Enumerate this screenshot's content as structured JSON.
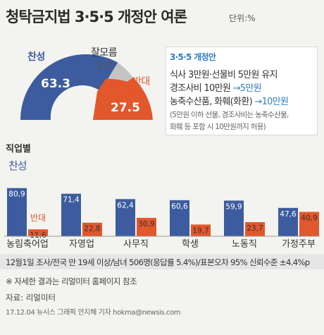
{
  "title": "청탁금지법 3·5·5 개정안 여론",
  "unit": "단위:%",
  "colors": {
    "approve": "#3d5c9f",
    "oppose": "#e2572b",
    "unknown": "#c4c4c4",
    "text": "#333333",
    "box_accent": "#2f7fc3"
  },
  "gauge": {
    "approve": {
      "label": "찬성",
      "value": "63.3"
    },
    "unknown": {
      "label": "잘모름",
      "value": "9.2"
    },
    "oppose": {
      "label": "반대",
      "value": "27.5"
    }
  },
  "box": {
    "title": "3·5·5 개정안",
    "line1": "식사 3만원·선물비 5만원 유지",
    "line2a": "경조사비 10만원 ",
    "line2b": "→5만원",
    "line3a": "농축수산품, 화훼(화환) ",
    "line3b": "→10만원",
    "line4": "(5만원 이하 선물, 경조사비는 농축수산물,",
    "line5": "화훼 등 포함 시 10만원까지 허용)"
  },
  "section_title": "직업별",
  "chart_data": {
    "type": "bar",
    "categories": [
      "농림축어업",
      "자영업",
      "사무직",
      "학생",
      "노동직",
      "가정주부"
    ],
    "series": [
      {
        "name": "찬성",
        "values": [
          80.9,
          71.4,
          62.4,
          60.6,
          59.9,
          47.6
        ]
      },
      {
        "name": "반대",
        "values": [
          11.6,
          22.8,
          30.9,
          19.7,
          23.7,
          40.9
        ]
      }
    ],
    "ylim": [
      0,
      90
    ]
  },
  "footnote": "12월1일 조사/전국 만 19세 이상/남녀 506명(응답률 5.4%)/표본오차 95% 신뢰수준 ±4.4%p",
  "note": "※ 자세한 결과는 리얼미터 홈페이지 참조",
  "source": "자료: 리얼미터",
  "credit": "17.12.04 뉴시스 그래픽 안지혜 기자 hokma@newsis.com"
}
